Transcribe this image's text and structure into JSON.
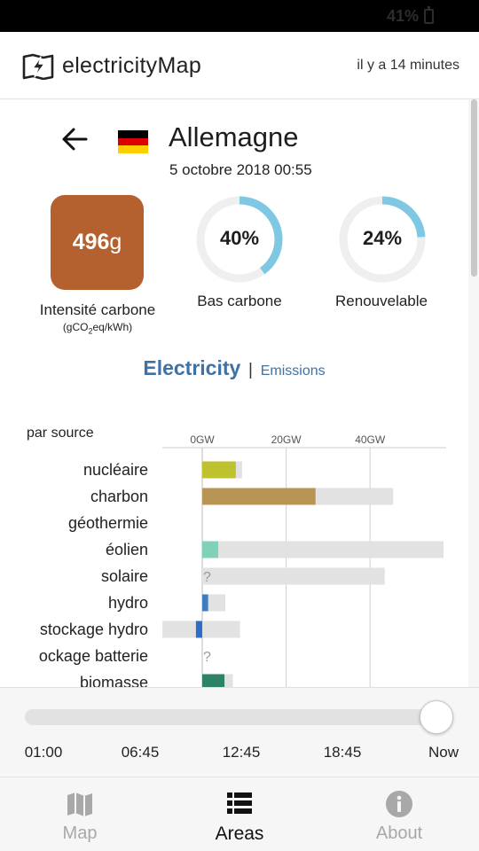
{
  "status_bar": {
    "battery": "41%"
  },
  "header": {
    "brand": "electricityMap",
    "updated": "il y a 14 minutes"
  },
  "zone": {
    "country": "Allemagne",
    "datetime": "5 octobre 2018 00:55",
    "flag_colors": [
      "#000000",
      "#dd0000",
      "#ffce00"
    ]
  },
  "metrics": {
    "carbon_value": "496",
    "carbon_unit": "g",
    "carbon_color": "#b5612f",
    "carbon_label": "Intensité carbone",
    "carbon_unit_label_pre": "(gCO",
    "carbon_unit_label_sub": "2",
    "carbon_unit_label_post": "eq/kWh)",
    "low_carbon_text": "40%",
    "low_carbon_fraction": 0.4,
    "low_carbon_label": "Bas carbone",
    "renewable_text": "24%",
    "renewable_fraction": 0.24,
    "renewable_label": "Renouvelable",
    "gauge_color": "#7ec8e3"
  },
  "mode_toggle": {
    "active": "Electricity",
    "separator": "|",
    "inactive": "Emissions"
  },
  "chart_data": {
    "type": "bar",
    "title": "par source",
    "x_unit": "GW",
    "x_ticks": [
      "0GW",
      "20GW",
      "40GW"
    ],
    "x_tick_values": [
      0,
      20,
      40
    ],
    "xlim": [
      -9.5,
      58
    ],
    "categories": [
      "nucléaire",
      "charbon",
      "géothermie",
      "éolien",
      "solaire",
      "hydro",
      "stockage hydro",
      "ockage batterie",
      "biomasse"
    ],
    "series": [
      {
        "name": "production",
        "values": [
          8.0,
          27.0,
          null,
          3.8,
          null,
          1.4,
          -1.5,
          null,
          5.3
        ]
      },
      {
        "name": "capacity",
        "values": [
          9.5,
          45.5,
          null,
          57.5,
          43.5,
          5.5,
          -9.5,
          null,
          7.3
        ],
        "capacity_low": [
          0,
          0,
          null,
          0,
          0,
          0,
          -9.5,
          null,
          0
        ],
        "capacity_high": [
          9.5,
          45.5,
          null,
          57.5,
          43.5,
          5.5,
          9.0,
          null,
          7.3
        ]
      }
    ],
    "unknown_marker": "?",
    "unknown_categories": [
      "solaire",
      "ockage batterie"
    ],
    "colors": [
      "#bfc22f",
      "#b89555",
      null,
      "#7fd1b9",
      "#f0c20c",
      "#3f7bbf",
      "#2f6bc9",
      null,
      "#2e8266"
    ],
    "capacity_color": "#e2e2e2"
  },
  "timeline": {
    "labels": [
      "01:00",
      "06:45",
      "12:45",
      "18:45",
      "Now"
    ],
    "position": 1.0
  },
  "bottom_nav": {
    "map": "Map",
    "areas": "Areas",
    "about": "About",
    "active": "Areas"
  }
}
